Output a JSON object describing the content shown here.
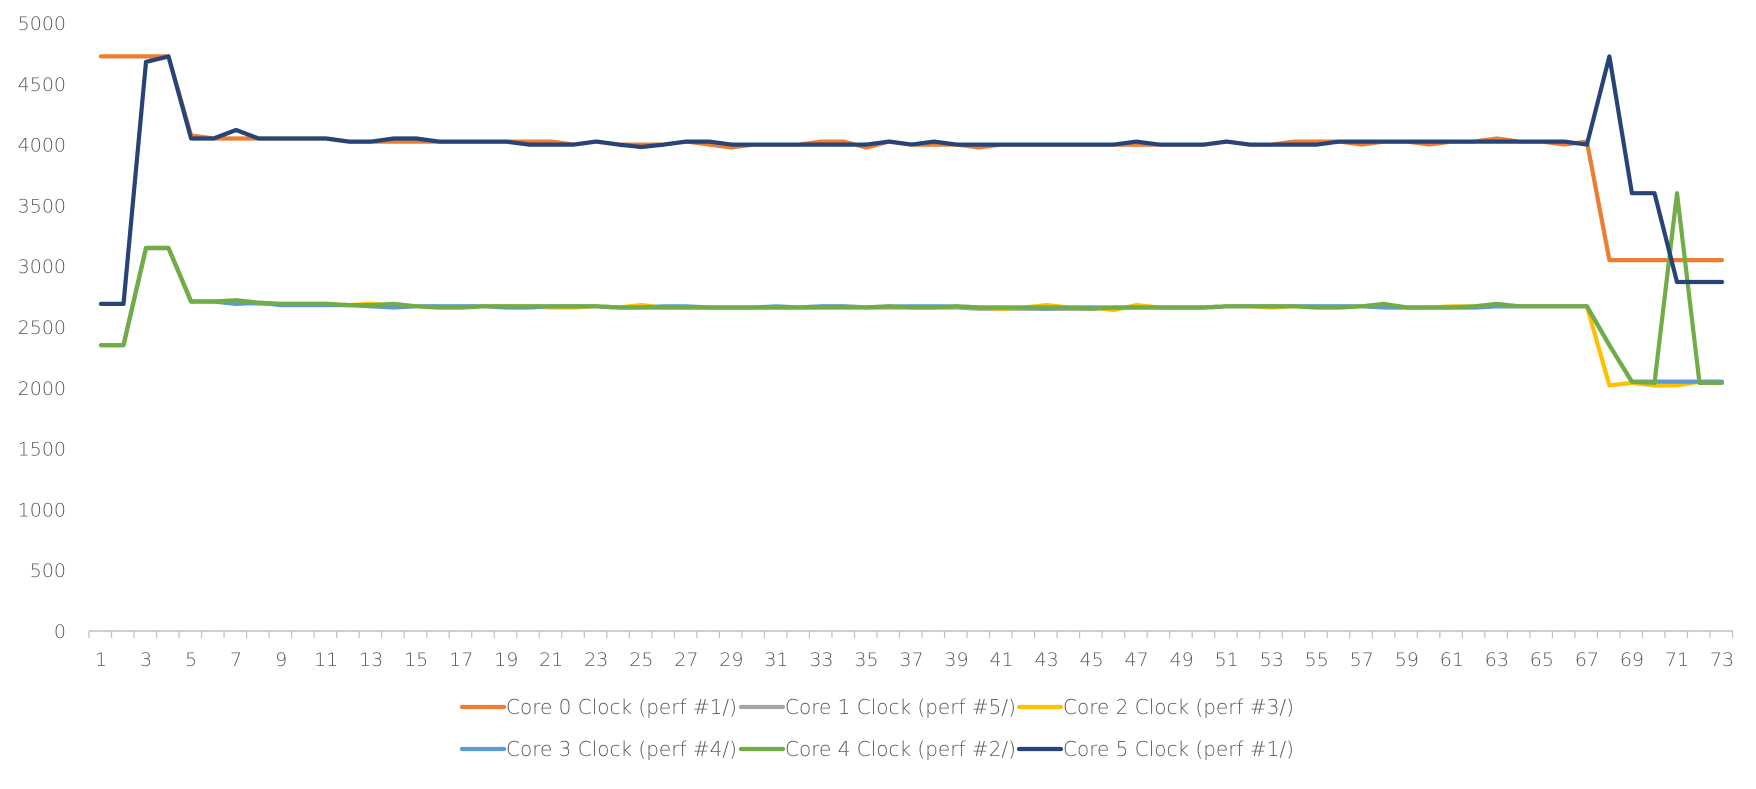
{
  "chart_data": {
    "type": "line",
    "title": "",
    "xlabel": "",
    "ylabel": "",
    "ylim": [
      0,
      5000
    ],
    "yticks": [
      0,
      500,
      1000,
      1500,
      2000,
      2500,
      3000,
      3500,
      4000,
      4500,
      5000
    ],
    "x_tick_labels": [
      1,
      3,
      5,
      7,
      9,
      11,
      13,
      15,
      17,
      19,
      21,
      23,
      25,
      27,
      29,
      31,
      33,
      35,
      37,
      39,
      41,
      43,
      45,
      47,
      49,
      51,
      53,
      55,
      57,
      59,
      61,
      63,
      65,
      67,
      69,
      71,
      73
    ],
    "x": [
      1,
      2,
      3,
      4,
      5,
      6,
      7,
      8,
      9,
      10,
      11,
      12,
      13,
      14,
      15,
      16,
      17,
      18,
      19,
      20,
      21,
      22,
      23,
      24,
      25,
      26,
      27,
      28,
      29,
      30,
      31,
      32,
      33,
      34,
      35,
      36,
      37,
      38,
      39,
      40,
      41,
      42,
      43,
      44,
      45,
      46,
      47,
      48,
      49,
      50,
      51,
      52,
      53,
      54,
      55,
      56,
      57,
      58,
      59,
      60,
      61,
      62,
      63,
      64,
      65,
      66,
      67,
      68,
      69,
      70,
      71,
      72,
      73
    ],
    "grid": false,
    "legend_position": "bottom",
    "series": [
      {
        "name": "Core 0 Clock (perf #1/)",
        "color": "#ED7D31",
        "values": [
          4725,
          4725,
          4725,
          4725,
          4075,
          4050,
          4050,
          4050,
          4050,
          4050,
          4050,
          4025,
          4025,
          4025,
          4025,
          4025,
          4025,
          4025,
          4025,
          4025,
          4025,
          4000,
          4025,
          4000,
          4000,
          4000,
          4025,
          4000,
          3975,
          4000,
          4000,
          4000,
          4025,
          4025,
          3975,
          4025,
          4000,
          4000,
          4000,
          3975,
          4000,
          4000,
          4000,
          4000,
          4000,
          4000,
          4000,
          4000,
          4000,
          4000,
          4025,
          4000,
          4000,
          4025,
          4025,
          4025,
          4000,
          4025,
          4025,
          4000,
          4025,
          4025,
          4050,
          4025,
          4025,
          4000,
          4025,
          3050,
          3050,
          3050,
          3050,
          3050,
          3050
        ]
      },
      {
        "name": "Core 1 Clock (perf #5/)",
        "color": "#A5A5A5",
        "values": [
          2350,
          2350,
          3150,
          3150,
          2710,
          2710,
          2700,
          2700,
          2690,
          2690,
          2690,
          2680,
          2680,
          2670,
          2670,
          2670,
          2670,
          2670,
          2670,
          2670,
          2670,
          2670,
          2670,
          2660,
          2660,
          2660,
          2660,
          2660,
          2660,
          2660,
          2660,
          2660,
          2670,
          2670,
          2660,
          2660,
          2660,
          2660,
          2660,
          2650,
          2650,
          2650,
          2650,
          2650,
          2650,
          2660,
          2660,
          2660,
          2660,
          2660,
          2670,
          2670,
          2670,
          2670,
          2670,
          2670,
          2670,
          2670,
          2660,
          2660,
          2660,
          2660,
          2670,
          2670,
          2670,
          2670,
          2670,
          2350,
          2050,
          2050,
          2050,
          2050,
          2050
        ]
      },
      {
        "name": "Core 2 Clock (perf #3/)",
        "color": "#FFC000",
        "values": [
          2350,
          2350,
          3150,
          3150,
          2710,
          2710,
          2700,
          2690,
          2690,
          2690,
          2690,
          2680,
          2690,
          2680,
          2670,
          2660,
          2660,
          2670,
          2670,
          2670,
          2660,
          2660,
          2670,
          2660,
          2680,
          2660,
          2660,
          2660,
          2660,
          2660,
          2660,
          2660,
          2660,
          2670,
          2660,
          2670,
          2660,
          2660,
          2670,
          2660,
          2650,
          2660,
          2680,
          2660,
          2660,
          2640,
          2680,
          2660,
          2660,
          2660,
          2670,
          2670,
          2660,
          2670,
          2660,
          2660,
          2670,
          2680,
          2660,
          2660,
          2670,
          2670,
          2680,
          2670,
          2670,
          2670,
          2670,
          2020,
          2040,
          2020,
          2020,
          2050,
          2050
        ]
      },
      {
        "name": "Core 3 Clock (perf #4/)",
        "color": "#5B9BD5",
        "values": [
          2350,
          2350,
          3150,
          3150,
          2710,
          2710,
          2690,
          2700,
          2680,
          2680,
          2680,
          2680,
          2670,
          2660,
          2670,
          2670,
          2670,
          2670,
          2660,
          2660,
          2670,
          2670,
          2670,
          2660,
          2660,
          2670,
          2670,
          2660,
          2660,
          2660,
          2670,
          2660,
          2670,
          2670,
          2660,
          2670,
          2670,
          2670,
          2670,
          2660,
          2660,
          2660,
          2650,
          2660,
          2660,
          2660,
          2660,
          2660,
          2660,
          2660,
          2670,
          2670,
          2670,
          2670,
          2670,
          2670,
          2670,
          2660,
          2660,
          2660,
          2660,
          2660,
          2670,
          2670,
          2670,
          2670,
          2670,
          2350,
          2050,
          2050,
          2050,
          2050,
          2050
        ]
      },
      {
        "name": "Core 4 Clock (perf #2/)",
        "color": "#70AD47",
        "values": [
          2350,
          2350,
          3150,
          3150,
          2710,
          2710,
          2720,
          2700,
          2690,
          2690,
          2690,
          2680,
          2680,
          2690,
          2670,
          2660,
          2660,
          2670,
          2670,
          2670,
          2670,
          2670,
          2670,
          2660,
          2660,
          2660,
          2660,
          2660,
          2660,
          2660,
          2660,
          2660,
          2660,
          2660,
          2660,
          2670,
          2660,
          2660,
          2670,
          2660,
          2660,
          2660,
          2660,
          2660,
          2650,
          2660,
          2660,
          2660,
          2660,
          2660,
          2670,
          2670,
          2670,
          2670,
          2660,
          2660,
          2670,
          2690,
          2660,
          2660,
          2660,
          2670,
          2690,
          2670,
          2670,
          2670,
          2670,
          2350,
          2050,
          2040,
          3600,
          2040,
          2040
        ]
      },
      {
        "name": "Core 5 Clock (perf #1/)",
        "color": "#264478",
        "values": [
          2690,
          2690,
          4680,
          4725,
          4050,
          4050,
          4120,
          4050,
          4050,
          4050,
          4050,
          4025,
          4025,
          4050,
          4050,
          4025,
          4025,
          4025,
          4025,
          4000,
          4000,
          4000,
          4025,
          4000,
          3980,
          4000,
          4025,
          4025,
          4000,
          4000,
          4000,
          4000,
          4000,
          4000,
          4000,
          4025,
          4000,
          4025,
          4000,
          4000,
          4000,
          4000,
          4000,
          4000,
          4000,
          4000,
          4025,
          4000,
          4000,
          4000,
          4025,
          4000,
          4000,
          4000,
          4000,
          4025,
          4025,
          4025,
          4025,
          4025,
          4025,
          4025,
          4025,
          4025,
          4025,
          4025,
          4000,
          4725,
          3600,
          3600,
          2870,
          2870,
          2870
        ]
      }
    ]
  }
}
